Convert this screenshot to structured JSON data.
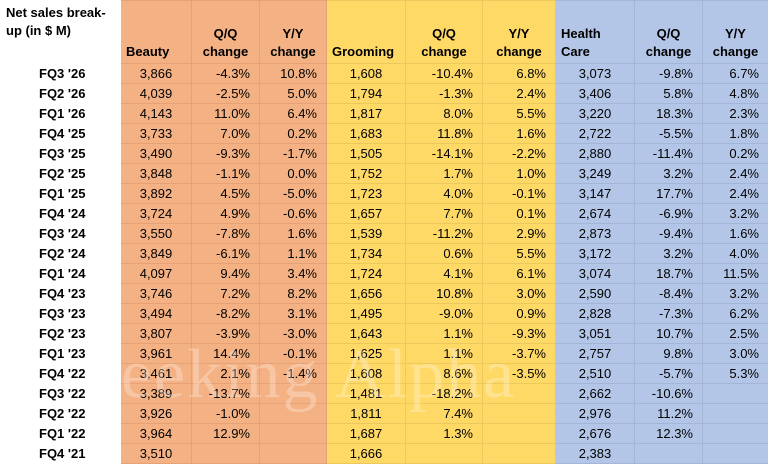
{
  "table": {
    "header_label": "Net sales break-up (in $ M)",
    "headers": [
      "Beauty",
      "Q/Q change",
      "Y/Y change",
      "Grooming",
      "Q/Q change",
      "Y/Y change",
      "Health Care",
      "Q/Q change",
      "Y/Y change"
    ],
    "segment_colors": {
      "beauty": "#f4b183",
      "grooming": "#ffd966",
      "health_care": "#b4c6e7"
    },
    "rows": [
      {
        "quarter": "FQ3 '26",
        "cells": [
          "3,866",
          "-4.3%",
          "10.8%",
          "1,608",
          "-10.4%",
          "6.8%",
          "3,073",
          "-9.8%",
          "6.7%"
        ]
      },
      {
        "quarter": "FQ2 '26",
        "cells": [
          "4,039",
          "-2.5%",
          "5.0%",
          "1,794",
          "-1.3%",
          "2.4%",
          "3,406",
          "5.8%",
          "4.8%"
        ]
      },
      {
        "quarter": "FQ1 '26",
        "cells": [
          "4,143",
          "11.0%",
          "6.4%",
          "1,817",
          "8.0%",
          "5.5%",
          "3,220",
          "18.3%",
          "2.3%"
        ]
      },
      {
        "quarter": "FQ4 '25",
        "cells": [
          "3,733",
          "7.0%",
          "0.2%",
          "1,683",
          "11.8%",
          "1.6%",
          "2,722",
          "-5.5%",
          "1.8%"
        ]
      },
      {
        "quarter": "FQ3 '25",
        "cells": [
          "3,490",
          "-9.3%",
          "-1.7%",
          "1,505",
          "-14.1%",
          "-2.2%",
          "2,880",
          "-11.4%",
          "0.2%"
        ]
      },
      {
        "quarter": "FQ2 '25",
        "cells": [
          "3,848",
          "-1.1%",
          "0.0%",
          "1,752",
          "1.7%",
          "1.0%",
          "3,249",
          "3.2%",
          "2.4%"
        ]
      },
      {
        "quarter": "FQ1 '25",
        "cells": [
          "3,892",
          "4.5%",
          "-5.0%",
          "1,723",
          "4.0%",
          "-0.1%",
          "3,147",
          "17.7%",
          "2.4%"
        ]
      },
      {
        "quarter": "FQ4 '24",
        "cells": [
          "3,724",
          "4.9%",
          "-0.6%",
          "1,657",
          "7.7%",
          "0.1%",
          "2,674",
          "-6.9%",
          "3.2%"
        ]
      },
      {
        "quarter": "FQ3 '24",
        "cells": [
          "3,550",
          "-7.8%",
          "1.6%",
          "1,539",
          "-11.2%",
          "2.9%",
          "2,873",
          "-9.4%",
          "1.6%"
        ]
      },
      {
        "quarter": "FQ2 '24",
        "cells": [
          "3,849",
          "-6.1%",
          "1.1%",
          "1,734",
          "0.6%",
          "5.5%",
          "3,172",
          "3.2%",
          "4.0%"
        ]
      },
      {
        "quarter": "FQ1 '24",
        "cells": [
          "4,097",
          "9.4%",
          "3.4%",
          "1,724",
          "4.1%",
          "6.1%",
          "3,074",
          "18.7%",
          "11.5%"
        ]
      },
      {
        "quarter": "FQ4 '23",
        "cells": [
          "3,746",
          "7.2%",
          "8.2%",
          "1,656",
          "10.8%",
          "3.0%",
          "2,590",
          "-8.4%",
          "3.2%"
        ]
      },
      {
        "quarter": "FQ3 '23",
        "cells": [
          "3,494",
          "-8.2%",
          "3.1%",
          "1,495",
          "-9.0%",
          "0.9%",
          "2,828",
          "-7.3%",
          "6.2%"
        ]
      },
      {
        "quarter": "FQ2 '23",
        "cells": [
          "3,807",
          "-3.9%",
          "-3.0%",
          "1,643",
          "1.1%",
          "-9.3%",
          "3,051",
          "10.7%",
          "2.5%"
        ]
      },
      {
        "quarter": "FQ1 '23",
        "cells": [
          "3,961",
          "14.4%",
          "-0.1%",
          "1,625",
          "1.1%",
          "-3.7%",
          "2,757",
          "9.8%",
          "3.0%"
        ]
      },
      {
        "quarter": "FQ4 '22",
        "cells": [
          "3,461",
          "2.1%",
          "-1.4%",
          "1,608",
          "8.6%",
          "-3.5%",
          "2,510",
          "-5.7%",
          "5.3%"
        ]
      },
      {
        "quarter": "FQ3 '22",
        "cells": [
          "3,389",
          "-13.7%",
          "",
          "1,481",
          "-18.2%",
          "",
          "2,662",
          "-10.6%",
          ""
        ]
      },
      {
        "quarter": "FQ2 '22",
        "cells": [
          "3,926",
          "-1.0%",
          "",
          "1,811",
          "7.4%",
          "",
          "2,976",
          "11.2%",
          ""
        ]
      },
      {
        "quarter": "FQ1 '22",
        "cells": [
          "3,964",
          "12.9%",
          "",
          "1,687",
          "1.3%",
          "",
          "2,676",
          "12.3%",
          ""
        ]
      },
      {
        "quarter": "FQ4 '21",
        "cells": [
          "3,510",
          "",
          "",
          "1,666",
          "",
          "",
          "2,383",
          "",
          ""
        ]
      }
    ]
  }
}
